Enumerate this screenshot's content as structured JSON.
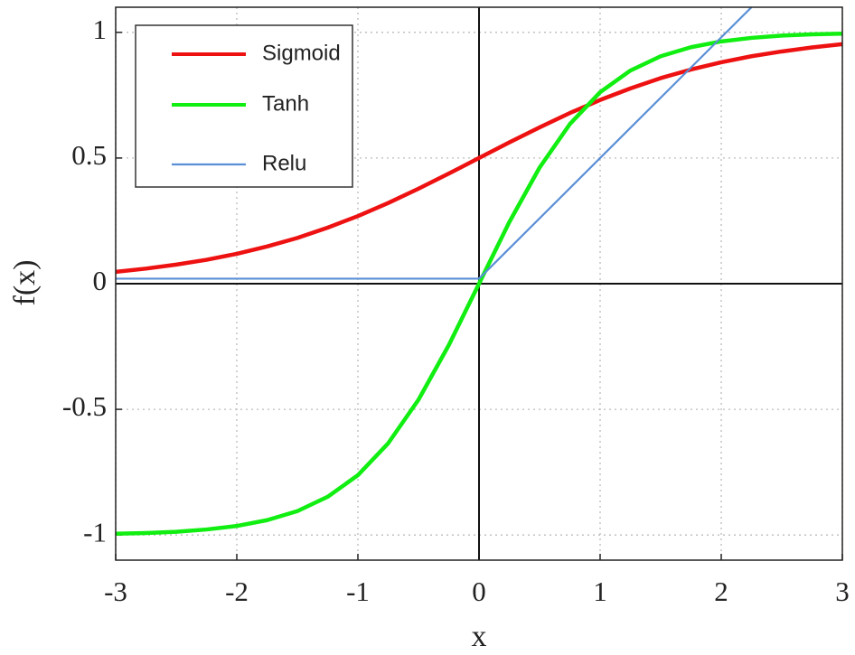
{
  "chart_data": {
    "type": "line",
    "xlabel": "x",
    "ylabel": "f(x)",
    "xlim": [
      -3,
      3
    ],
    "ylim": [
      -1.1,
      1.1
    ],
    "xticks": [
      -3,
      -2,
      -1,
      0,
      1,
      2,
      3
    ],
    "yticks": [
      -1,
      -0.5,
      0,
      0.5,
      1
    ],
    "grid": true,
    "legend": "upper left",
    "x": [
      -3,
      -2.75,
      -2.5,
      -2.25,
      -2,
      -1.75,
      -1.5,
      -1.25,
      -1,
      -0.75,
      -0.5,
      -0.25,
      0,
      0.25,
      0.5,
      0.75,
      1,
      1.25,
      1.5,
      1.75,
      2,
      2.25,
      2.5,
      2.75,
      3
    ],
    "series": [
      {
        "name": "Sigmoid",
        "color": "#ee1111",
        "values": [
          0.047,
          0.06,
          0.076,
          0.095,
          0.119,
          0.148,
          0.182,
          0.223,
          0.269,
          0.321,
          0.378,
          0.438,
          0.5,
          0.562,
          0.622,
          0.679,
          0.731,
          0.777,
          0.818,
          0.852,
          0.881,
          0.905,
          0.924,
          0.94,
          0.953
        ]
      },
      {
        "name": "Tanh",
        "color": "#11ee11",
        "values": [
          -0.995,
          -0.992,
          -0.987,
          -0.978,
          -0.964,
          -0.941,
          -0.905,
          -0.848,
          -0.762,
          -0.635,
          -0.462,
          -0.245,
          0,
          0.245,
          0.462,
          0.635,
          0.762,
          0.848,
          0.905,
          0.941,
          0.964,
          0.978,
          0.987,
          0.992,
          0.995
        ]
      },
      {
        "name": "Relu",
        "color": "#5a8fd6",
        "x": [
          -3,
          0,
          2.25
        ],
        "values": [
          0.02,
          0.02,
          1.1
        ]
      }
    ]
  }
}
